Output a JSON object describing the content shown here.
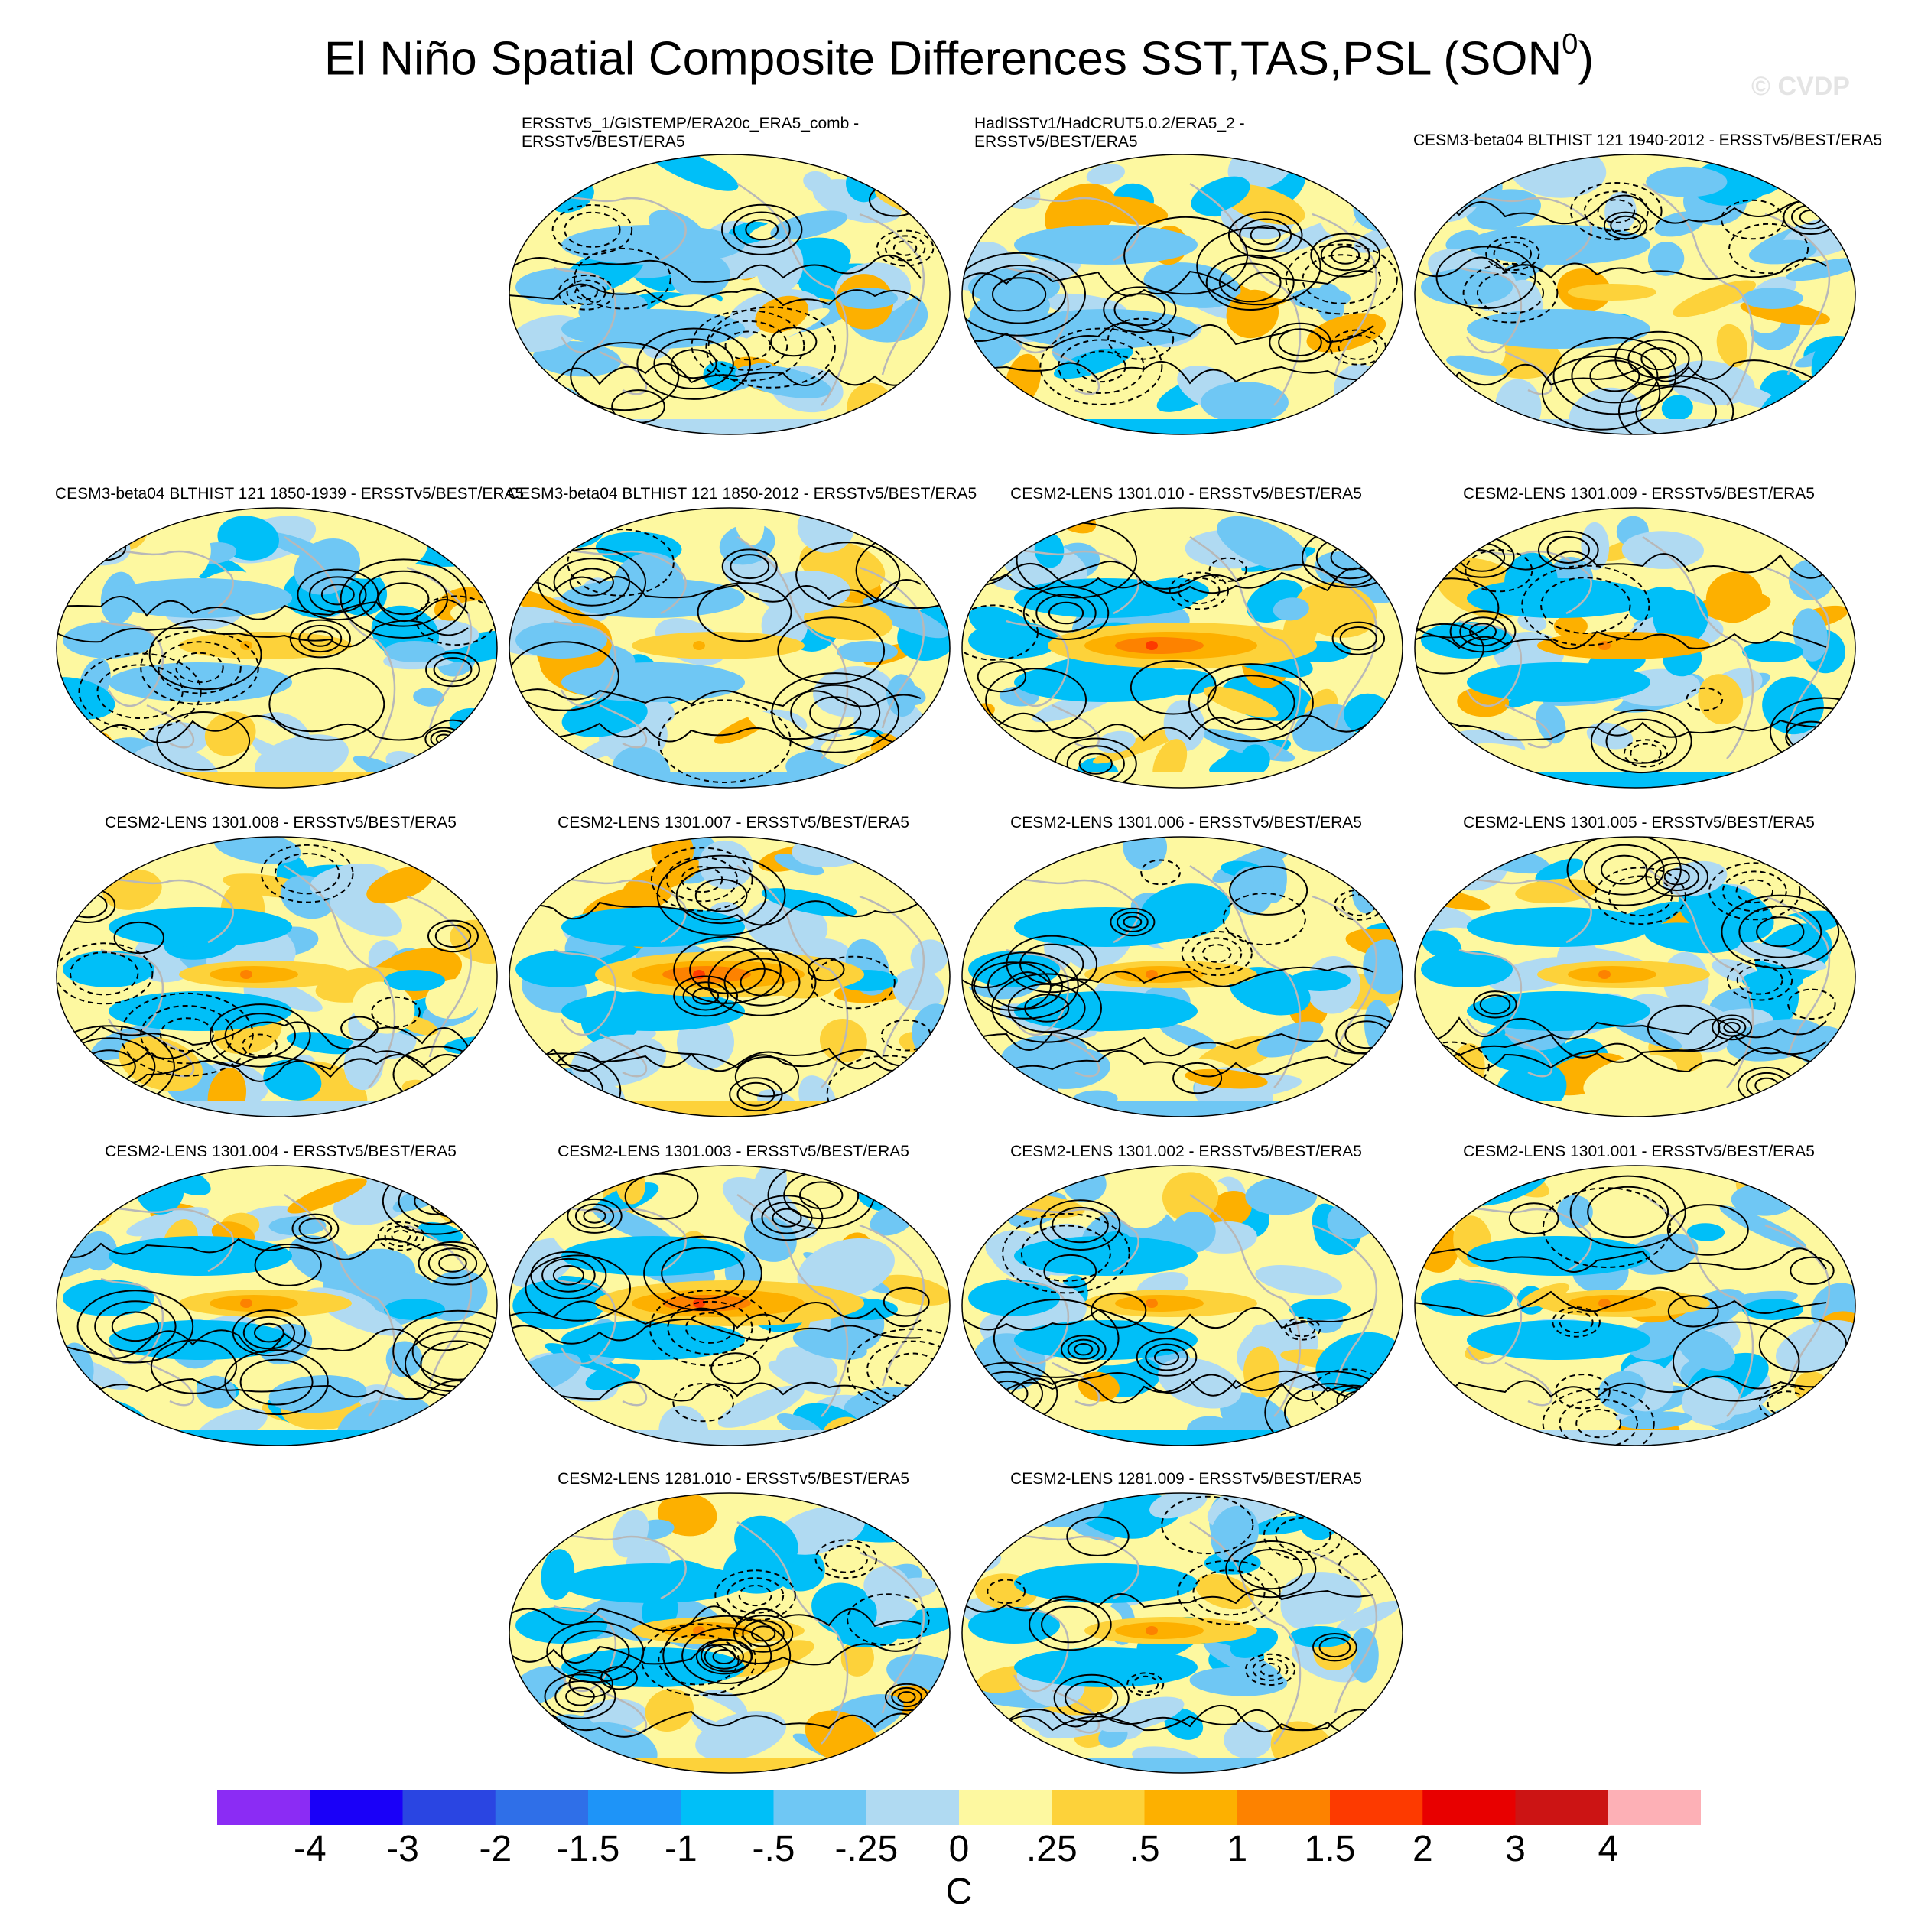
{
  "title_main": "El Niño Spatial Composite Differences SST,TAS,PSL (SON",
  "title_sup": "0",
  "title_end": ")",
  "watermark": "© CVDP",
  "colors": {
    "neg": [
      "#8b2cf4",
      "#1a00f8",
      "#2a45e2",
      "#2f6fe8",
      "#1e94f8",
      "#00bff8",
      "#6fc7f4",
      "#b0daf2"
    ],
    "pos": [
      "#fdf8a0",
      "#fdd23a",
      "#fdb000",
      "#fd8200",
      "#fd3a00",
      "#e80000",
      "#cc1414",
      "#fdb0b6"
    ]
  },
  "chart_data": {
    "type": "heatmap",
    "title": "El Niño Spatial Composite Differences SST,TAS,PSL (SON0)",
    "projection": "Robinson global map",
    "colorbar": {
      "unit": "C",
      "levels": [
        "-4",
        "-3",
        "-2",
        "-1.5",
        "-1",
        "-.5",
        "-.25",
        "0",
        ".25",
        ".5",
        "1",
        "1.5",
        "2",
        "3",
        "4"
      ]
    },
    "panels": [
      {
        "title_lines": [
          "ERSSTv5_1/GISTEMP/ERA20c_ERA5_comb -",
          "ERSSTv5/BEST/ERA5"
        ],
        "enso": 0.1,
        "seed": 1
      },
      {
        "title_lines": [
          "HadISSTv1/HadCRUT5.0.2/ERA5_2 -",
          "ERSSTv5/BEST/ERA5"
        ],
        "enso": 0.05,
        "seed": 2
      },
      {
        "title_lines": [
          "CESM3-beta04 BLTHIST 121 1940-2012 - ERSSTv5/BEST/ERA5"
        ],
        "enso": 0.25,
        "seed": 3
      },
      {
        "title_lines": [
          "CESM3-beta04 BLTHIST 121 1850-1939 - ERSSTv5/BEST/ERA5"
        ],
        "enso": 0.4,
        "seed": 4
      },
      {
        "title_lines": [
          "CESM3-beta04 BLTHIST 121 1850-2012 - ERSSTv5/BEST/ERA5"
        ],
        "enso": 0.4,
        "seed": 5
      },
      {
        "title_lines": [
          "CESM2-LENS 1301.010 - ERSSTv5/BEST/ERA5"
        ],
        "enso": 0.9,
        "seed": 6
      },
      {
        "title_lines": [
          "CESM2-LENS 1301.009 - ERSSTv5/BEST/ERA5"
        ],
        "enso": 0.8,
        "seed": 7
      },
      {
        "title_lines": [
          "CESM2-LENS 1301.008 - ERSSTv5/BEST/ERA5"
        ],
        "enso": 0.6,
        "seed": 8
      },
      {
        "title_lines": [
          "CESM2-LENS 1301.007 - ERSSTv5/BEST/ERA5"
        ],
        "enso": 0.9,
        "seed": 9
      },
      {
        "title_lines": [
          "CESM2-LENS 1301.006 - ERSSTv5/BEST/ERA5"
        ],
        "enso": 0.6,
        "seed": 10
      },
      {
        "title_lines": [
          "CESM2-LENS 1301.005 - ERSSTv5/BEST/ERA5"
        ],
        "enso": 0.7,
        "seed": 11
      },
      {
        "title_lines": [
          "CESM2-LENS 1301.004 - ERSSTv5/BEST/ERA5"
        ],
        "enso": 0.6,
        "seed": 12
      },
      {
        "title_lines": [
          "CESM2-LENS 1301.003 - ERSSTv5/BEST/ERA5"
        ],
        "enso": 0.9,
        "seed": 13
      },
      {
        "title_lines": [
          "CESM2-LENS 1301.002 - ERSSTv5/BEST/ERA5"
        ],
        "enso": 0.6,
        "seed": 14
      },
      {
        "title_lines": [
          "CESM2-LENS 1301.001 - ERSSTv5/BEST/ERA5"
        ],
        "enso": 0.6,
        "seed": 15
      },
      {
        "title_lines": [
          "CESM2-LENS 1281.010 - ERSSTv5/BEST/ERA5"
        ],
        "enso": 0.7,
        "seed": 16
      },
      {
        "title_lines": [
          "CESM2-LENS 1281.009 - ERSSTv5/BEST/ERA5"
        ],
        "enso": 0.6,
        "seed": 17
      }
    ]
  }
}
